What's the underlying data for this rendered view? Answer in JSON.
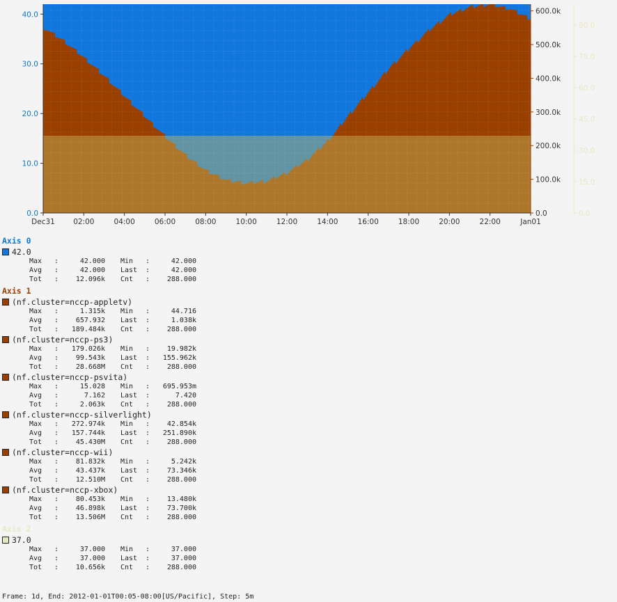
{
  "chart_data": {
    "type": "area",
    "x_ticks": [
      "Dec31",
      "02:00",
      "04:00",
      "06:00",
      "08:00",
      "10:00",
      "12:00",
      "14:00",
      "16:00",
      "18:00",
      "20:00",
      "22:00",
      "Jan01"
    ],
    "axes": [
      {
        "title": "Axis 0",
        "side": "left",
        "color": "#1177cc",
        "ylim": [
          0,
          42
        ],
        "tick_values": [
          0,
          10,
          20,
          30,
          40
        ],
        "tick_labels": [
          "0.0",
          "10.0",
          "20.0",
          "30.0",
          "40.0"
        ]
      },
      {
        "title": "Axis 1",
        "side": "right",
        "color": "#994000",
        "ylim": [
          0,
          620000
        ],
        "tick_values": [
          0,
          100000,
          200000,
          300000,
          400000,
          500000,
          600000
        ],
        "tick_labels": [
          "0.0",
          "100.0k",
          "200.0k",
          "300.0k",
          "400.0k",
          "500.0k",
          "600.0k"
        ]
      },
      {
        "title": "Axis 2",
        "side": "right",
        "color": "#e8e8c4",
        "ylim": [
          0,
          100
        ],
        "tick_values": [
          0,
          15,
          30,
          45,
          60,
          75,
          90
        ],
        "tick_labels": [
          "0.0",
          "15.0",
          "30.0",
          "45.0",
          "60.0",
          "75.0",
          "90.0"
        ]
      }
    ],
    "series": [
      {
        "name": "42.0",
        "axis": 0,
        "color": "#1177dd",
        "constant": 42,
        "stats": {
          "Max": "42.000",
          "Min": "42.000",
          "Avg": "42.000",
          "Last": "42.000",
          "Tot": "12.096k",
          "Cnt": "288.000"
        }
      },
      {
        "name": "(nf.cluster=nccp-appletv)",
        "axis": 1,
        "color": "#994000",
        "stats": {
          "Max": "1.315k",
          "Min": "44.716",
          "Avg": "657.932",
          "Last": "1.038k",
          "Tot": "189.484k",
          "Cnt": "288.000"
        }
      },
      {
        "name": "(nf.cluster=nccp-ps3)",
        "axis": 1,
        "color": "#994000",
        "stats": {
          "Max": "179.026k",
          "Min": "19.982k",
          "Avg": "99.543k",
          "Last": "155.962k",
          "Tot": "28.668M",
          "Cnt": "288.000"
        }
      },
      {
        "name": "(nf.cluster=nccp-psvita)",
        "axis": 1,
        "color": "#994000",
        "stats": {
          "Max": "15.028",
          "Min": "695.953m",
          "Avg": "7.162",
          "Last": "7.420",
          "Tot": "2.063k",
          "Cnt": "288.000"
        }
      },
      {
        "name": "(nf.cluster=nccp-silverlight)",
        "axis": 1,
        "color": "#994000",
        "stats": {
          "Max": "272.974k",
          "Min": "42.854k",
          "Avg": "157.744k",
          "Last": "251.890k",
          "Tot": "45.430M",
          "Cnt": "288.000"
        }
      },
      {
        "name": "(nf.cluster=nccp-wii)",
        "axis": 1,
        "color": "#994000",
        "stats": {
          "Max": "81.832k",
          "Min": "5.242k",
          "Avg": "43.437k",
          "Last": "73.346k",
          "Tot": "12.510M",
          "Cnt": "288.000"
        }
      },
      {
        "name": "(nf.cluster=nccp-xbox)",
        "axis": 1,
        "color": "#994000",
        "stats": {
          "Max": "80.453k",
          "Min": "13.480k",
          "Avg": "46.898k",
          "Last": "73.700k",
          "Tot": "13.506M",
          "Cnt": "288.000"
        }
      },
      {
        "name": "37.0",
        "axis": 2,
        "color": "#e8e8c4",
        "constant": 37,
        "stats": {
          "Max": "37.000",
          "Min": "37.000",
          "Avg": "37.000",
          "Last": "37.000",
          "Tot": "10.656k",
          "Cnt": "288.000"
        }
      }
    ],
    "stacked_total_profile": {
      "x_hours": [
        0,
        1,
        2,
        3,
        4,
        5,
        6,
        7,
        8,
        9,
        10,
        11,
        12,
        13,
        14,
        15,
        16,
        17,
        18,
        19,
        20,
        21,
        22,
        23,
        24
      ],
      "y": [
        550000,
        510000,
        460000,
        405000,
        345000,
        285000,
        225000,
        170000,
        125000,
        97000,
        88000,
        95000,
        120000,
        160000,
        215000,
        290000,
        360000,
        430000,
        490000,
        545000,
        590000,
        612000,
        620000,
        605000,
        575000
      ]
    }
  },
  "labels": {
    "stat_labels": {
      "max": "Max",
      "min": "Min",
      "avg": "Avg",
      "last": "Last",
      "tot": "Tot",
      "cnt": "Cnt"
    },
    "colon": ":"
  },
  "footer": "Frame: 1d, End: 2012-01-01T00:05-08:00[US/Pacific], Step: 5m"
}
